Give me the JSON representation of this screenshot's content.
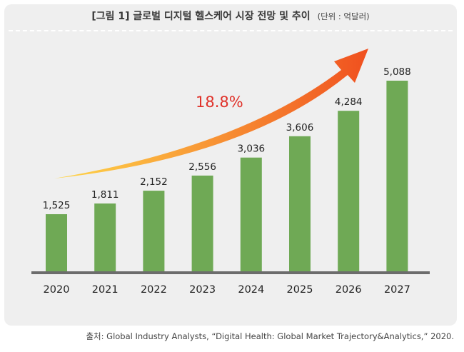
{
  "header": {
    "title": "[그림 1] 글로벌 디지털 헬스케어 시장 전망 및 추이",
    "unit": "(단위 : 억달러)"
  },
  "source": "출처: Global Industry Analysts, “Digital Health: Global Market Trajectory&Analytics,” 2020.",
  "colors": {
    "bar": "#6fa955",
    "axis": "#6c6c6c",
    "arrow_start": "#ffd84a",
    "arrow_end": "#f0501f",
    "cagr": "#e0322a",
    "panel": "#efefef"
  },
  "chart_data": {
    "type": "bar",
    "categories": [
      "2020",
      "2021",
      "2022",
      "2023",
      "2024",
      "2025",
      "2026",
      "2027"
    ],
    "values": [
      1525,
      1811,
      2152,
      2556,
      3036,
      3606,
      4284,
      5088
    ],
    "value_labels": [
      "1,525",
      "1,811",
      "2,152",
      "2,556",
      "3,036",
      "3,606",
      "4,284",
      "5,088"
    ],
    "annotation": "18.8%",
    "ylim": [
      0,
      5088
    ],
    "grid": false,
    "legend": "none"
  }
}
